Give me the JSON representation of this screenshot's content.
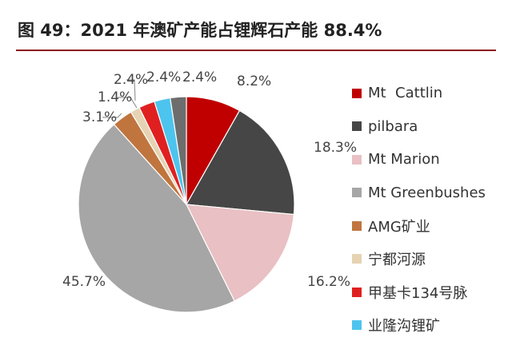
{
  "title": "图 49：2021 年澳矿产能占锂辉石产能 88.4%",
  "chart_data": {
    "type": "pie",
    "title": "图 49：2021 年澳矿产能占锂辉石产能 88.4%",
    "legend_position": "right",
    "start_angle": "top, clockwise",
    "slices": [
      {
        "name": "Mt  Cattlin",
        "value": 8.2,
        "label": "8.2%",
        "color": "#c00000"
      },
      {
        "name": "pilbara",
        "value": 18.3,
        "label": "18.3%",
        "color": "#464646"
      },
      {
        "name": "Mt Marion",
        "value": 16.2,
        "label": "16.2%",
        "color": "#e9c0c3"
      },
      {
        "name": "Mt Greenbushes",
        "value": 45.7,
        "label": "45.7%",
        "color": "#a6a6a6"
      },
      {
        "name": "AMG矿业",
        "value": 3.1,
        "label": "3.1%",
        "color": "#c0753e"
      },
      {
        "name": "宁都河源",
        "value": 1.4,
        "label": "1.4%",
        "color": "#e6d3b3"
      },
      {
        "name": "甲基卡134号脉",
        "value": 2.4,
        "label": "2.4%",
        "color": "#e02020"
      },
      {
        "name": "业隆沟锂矿",
        "value": 2.4,
        "label": "2.4%",
        "color": "#4dc4ee"
      },
      {
        "name": "",
        "value": 2.4,
        "label": "2.4%",
        "color": "#6d6d6d"
      }
    ]
  }
}
